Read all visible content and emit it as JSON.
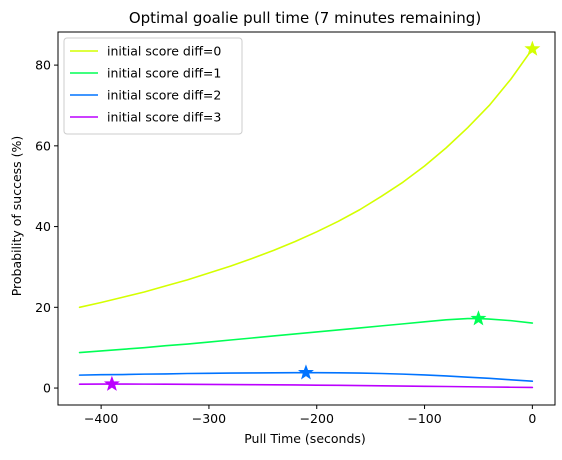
{
  "chart_data": {
    "type": "line",
    "title": "Optimal goalie pull time (7 minutes remaining)",
    "xlabel": "Pull Time (seconds)",
    "ylabel": "Probability of success (%)",
    "xlim": [
      -440,
      21
    ],
    "ylim": [
      -4.2,
      88.2
    ],
    "xticks": [
      -400,
      -300,
      -200,
      -100,
      0
    ],
    "xtick_labels": [
      "−400",
      "−300",
      "−200",
      "−100",
      "0"
    ],
    "yticks": [
      0,
      20,
      40,
      60,
      80
    ],
    "ytick_labels": [
      "0",
      "20",
      "40",
      "60",
      "80"
    ],
    "grid": false,
    "legend": "top-left",
    "series": [
      {
        "name": "initial score diff=0",
        "color": "#d4ff00",
        "x": [
          -420,
          -400,
          -380,
          -360,
          -340,
          -320,
          -300,
          -280,
          -260,
          -240,
          -220,
          -200,
          -180,
          -160,
          -140,
          -120,
          -100,
          -80,
          -60,
          -40,
          -20,
          0
        ],
        "y": [
          20.0,
          21.2,
          22.5,
          23.8,
          25.3,
          26.8,
          28.5,
          30.2,
          32.1,
          34.1,
          36.3,
          38.7,
          41.3,
          44.2,
          47.5,
          51.0,
          55.0,
          59.5,
          64.5,
          70.0,
          76.5,
          84.0
        ],
        "optimum": {
          "x": 0,
          "y": 84.0
        }
      },
      {
        "name": "initial score diff=1",
        "color": "#00ff55",
        "x": [
          -420,
          -400,
          -380,
          -360,
          -340,
          -320,
          -300,
          -280,
          -260,
          -240,
          -220,
          -200,
          -180,
          -160,
          -140,
          -120,
          -100,
          -80,
          -60,
          -50,
          -40,
          -20,
          0
        ],
        "y": [
          8.8,
          9.2,
          9.6,
          10.0,
          10.5,
          10.9,
          11.4,
          11.9,
          12.4,
          12.9,
          13.4,
          13.9,
          14.4,
          14.9,
          15.4,
          15.9,
          16.4,
          16.9,
          17.2,
          17.2,
          17.1,
          16.7,
          16.1
        ],
        "optimum": {
          "x": -50,
          "y": 17.2
        }
      },
      {
        "name": "initial score diff=2",
        "color": "#0073ff",
        "x": [
          -420,
          -400,
          -380,
          -360,
          -340,
          -320,
          -300,
          -280,
          -260,
          -240,
          -220,
          -200,
          -180,
          -160,
          -140,
          -120,
          -100,
          -80,
          -60,
          -40,
          -20,
          0
        ],
        "y": [
          3.2,
          3.3,
          3.35,
          3.45,
          3.5,
          3.6,
          3.65,
          3.7,
          3.75,
          3.78,
          3.8,
          3.8,
          3.78,
          3.72,
          3.6,
          3.45,
          3.25,
          3.0,
          2.7,
          2.4,
          2.05,
          1.7
        ],
        "optimum": {
          "x": -210,
          "y": 3.8
        }
      },
      {
        "name": "initial score diff=3",
        "color": "#bb00ff",
        "x": [
          -420,
          -400,
          -390,
          -380,
          -360,
          -340,
          -320,
          -300,
          -280,
          -260,
          -240,
          -220,
          -200,
          -180,
          -160,
          -140,
          -120,
          -100,
          -80,
          -60,
          -40,
          -20,
          0
        ],
        "y": [
          0.95,
          0.98,
          0.98,
          0.98,
          0.97,
          0.95,
          0.93,
          0.9,
          0.87,
          0.84,
          0.8,
          0.76,
          0.72,
          0.67,
          0.62,
          0.56,
          0.5,
          0.44,
          0.38,
          0.32,
          0.26,
          0.2,
          0.15
        ],
        "optimum": {
          "x": -390,
          "y": 0.98
        }
      }
    ]
  }
}
